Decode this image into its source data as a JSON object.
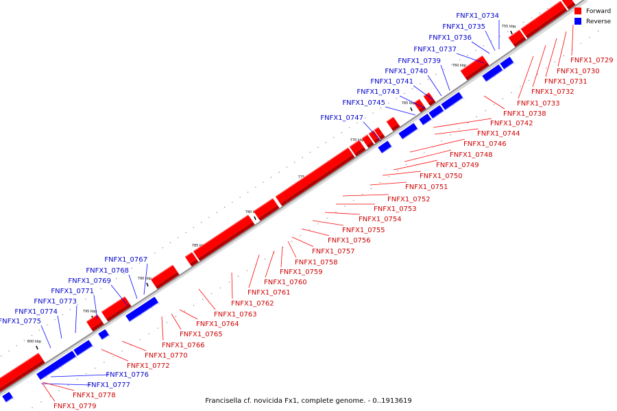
{
  "legend": {
    "forward_label": "Forward",
    "reverse_label": "Reverse",
    "forward_color": "#ff0000",
    "reverse_color": "#0000ff"
  },
  "caption": "Francisella cf. novicida Fx1, complete genome. - 0..1913619",
  "colors": {
    "forward": "#ff0000",
    "forward_dark": "#b30000",
    "forward_light": "#ff6b6b",
    "reverse": "#0000ff",
    "reverse_dark": "#0000a6",
    "reverse_light": "#6b6bff",
    "backbone": "#8c8c8c",
    "label_forward": "#cc0000",
    "label_reverse": "#0000cc"
  },
  "ticks": [
    "755 kbp",
    "760 kbp",
    "765 kbp",
    "770 kbp",
    "775 kbp",
    "780 kbp",
    "785 kbp",
    "790 kbp",
    "795 kbp",
    "800 kbp"
  ],
  "reverse_genes": [
    "FNFX1_0734",
    "FNFX1_0735",
    "FNFX1_0736",
    "FNFX1_0737",
    "FNFX1_0739",
    "FNFX1_0740",
    "FNFX1_0741",
    "FNFX1_0743",
    "FNFX1_0745",
    "FNFX1_0747",
    "FNFX1_0767",
    "FNFX1_0768",
    "FNFX1_0769",
    "FNFX1_0771",
    "FNFX1_0773",
    "FNFX1_0774",
    "FNFX1_0775",
    "FNFX1_0776",
    "FNFX1_0777"
  ],
  "forward_genes": [
    "FNFX1_0729",
    "FNFX1_0730",
    "FNFX1_0731",
    "FNFX1_0732",
    "FNFX1_0733",
    "FNFX1_0738",
    "FNFX1_0742",
    "FNFX1_0744",
    "FNFX1_0746",
    "FNFX1_0748",
    "FNFX1_0749",
    "FNFX1_0750",
    "FNFX1_0751",
    "FNFX1_0752",
    "FNFX1_0753",
    "FNFX1_0754",
    "FNFX1_0755",
    "FNFX1_0756",
    "FNFX1_0757",
    "FNFX1_0758",
    "FNFX1_0759",
    "FNFX1_0760",
    "FNFX1_0761",
    "FNFX1_0762",
    "FNFX1_0763",
    "FNFX1_0764",
    "FNFX1_0765",
    "FNFX1_0766",
    "FNFX1_0770",
    "FNFX1_0772",
    "FNFX1_0778",
    "FNFX1_0779"
  ]
}
